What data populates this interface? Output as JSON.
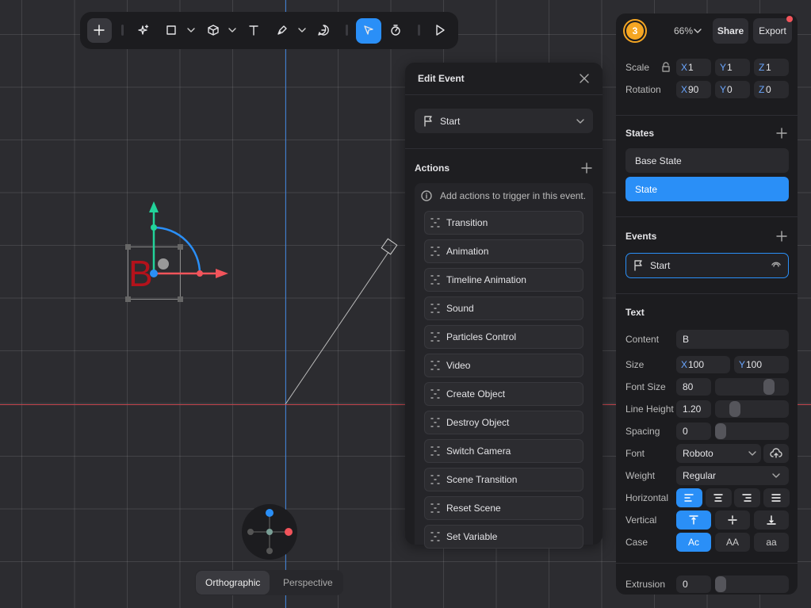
{
  "toolbar": {
    "avatar": "3",
    "zoom": "66%",
    "share": "Share",
    "export": "Export"
  },
  "axes": [
    "X",
    "Y",
    "Z"
  ],
  "transform": {
    "scale": {
      "label": "Scale",
      "values": [
        "1",
        "1",
        "1"
      ]
    },
    "rotation": {
      "label": "Rotation",
      "values": [
        "90",
        "0",
        "0"
      ]
    }
  },
  "states": {
    "title": "States",
    "items": [
      "Base State",
      "State"
    ]
  },
  "events": {
    "title": "Events",
    "items": [
      "Start"
    ]
  },
  "text": {
    "title": "Text",
    "content": {
      "label": "Content",
      "value": "B"
    },
    "size": {
      "label": "Size",
      "x": "100",
      "y": "100"
    },
    "font_size": {
      "label": "Font Size",
      "value": "80"
    },
    "line_height": {
      "label": "Line Height",
      "value": "1.20"
    },
    "spacing": {
      "label": "Spacing",
      "value": "0"
    },
    "font": {
      "label": "Font",
      "value": "Roboto"
    },
    "weight": {
      "label": "Weight",
      "value": "Regular"
    },
    "horizontal": {
      "label": "Horizontal"
    },
    "vertical": {
      "label": "Vertical"
    },
    "case": {
      "label": "Case",
      "options": [
        "Ac",
        "AA",
        "aa"
      ]
    },
    "extrusion": {
      "label": "Extrusion",
      "value": "0"
    }
  },
  "edit_event": {
    "title": "Edit Event",
    "trigger": "Start",
    "actions_title": "Actions",
    "hint": "Add actions to trigger in this event.",
    "actions": [
      "Transition",
      "Animation",
      "Timeline Animation",
      "Sound",
      "Particles Control",
      "Video",
      "Create Object",
      "Destroy Object",
      "Switch Camera",
      "Scene Transition",
      "Reset Scene",
      "Set Variable"
    ]
  },
  "canvas": {
    "text_object": "B",
    "views": [
      "Orthographic",
      "Perspective"
    ]
  }
}
